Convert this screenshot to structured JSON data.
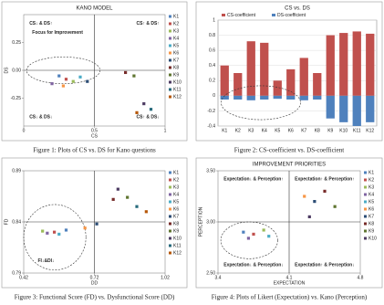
{
  "chart_data": [
    {
      "type": "scatter",
      "title": "KANO MODEL",
      "x_label": "CS",
      "y_label": "DS",
      "caption": "Figure 1: Plots of CS vs. DS for Kano questions",
      "xlim": [
        0,
        1
      ],
      "xticks": [
        0,
        0.5,
        1
      ],
      "ylim": [
        -0.5,
        0.5
      ],
      "yticks": [
        0.25,
        {
          "value": 0,
          "label": "0.00"
        },
        -0.25
      ],
      "grid": false,
      "legend": "right",
      "annotations": [
        "CS↓ & DS↑",
        "CS↑ & DS↑",
        "CS↓ & DS↓",
        "CS↑ & DS↓",
        "Focus for Improvement"
      ],
      "series": [
        {
          "name": "K1",
          "color": "#4f81bd",
          "x": [
            0.25
          ],
          "values": [
            -0.05
          ]
        },
        {
          "name": "K2",
          "color": "#c0504d",
          "x": [
            0.3
          ],
          "values": [
            -0.08
          ]
        },
        {
          "name": "K3",
          "color": "#9bbb59",
          "x": [
            0.35
          ],
          "values": [
            -0.1
          ]
        },
        {
          "name": "K4",
          "color": "#8064a2",
          "x": [
            0.2
          ],
          "values": [
            -0.12
          ]
        },
        {
          "name": "K5",
          "color": "#4bacc6",
          "x": [
            0.4
          ],
          "values": [
            -0.06
          ]
        },
        {
          "name": "K6",
          "color": "#f79646",
          "x": [
            0.28
          ],
          "values": [
            -0.14
          ]
        },
        {
          "name": "K7",
          "color": "#2c4d75",
          "x": [
            0.45
          ],
          "values": [
            -0.1
          ]
        },
        {
          "name": "K8",
          "color": "#772c2a",
          "x": [
            0.72
          ],
          "values": [
            -0.02
          ]
        },
        {
          "name": "K9",
          "color": "#5f7530",
          "x": [
            0.78
          ],
          "values": [
            -0.05
          ]
        },
        {
          "name": "K10",
          "color": "#4d3b62",
          "x": [
            0.85
          ],
          "values": [
            -0.3
          ]
        },
        {
          "name": "K11",
          "color": "#276a7c",
          "x": [
            0.9
          ],
          "values": [
            -0.35
          ]
        },
        {
          "name": "K12",
          "color": "#b65708",
          "x": [
            0.8
          ],
          "values": [
            -0.38
          ]
        }
      ]
    },
    {
      "type": "bar",
      "title": "CS vs. DS",
      "caption": "Figure 2: CS-coefficient vs. DS-coefficient",
      "categories": [
        "K1",
        "K2",
        "K3",
        "K4",
        "K5",
        "K6",
        "K7",
        "K8",
        "K9",
        "K10",
        "K11",
        "K12"
      ],
      "ylim": [
        -0.4,
        1
      ],
      "yticks": [
        1,
        0.8,
        0.6,
        0.4,
        0.2,
        0,
        -0.2,
        -0.4
      ],
      "grid": true,
      "legend": "top",
      "series": [
        {
          "name": "CS-coefficient",
          "color": "#c0504d",
          "values": [
            0.4,
            0.3,
            0.72,
            0.7,
            0.2,
            0.35,
            0.5,
            0.3,
            0.8,
            0.83,
            0.85,
            0.82
          ]
        },
        {
          "name": "DS-coefficient",
          "color": "#4f81bd",
          "values": [
            -0.05,
            -0.05,
            -0.06,
            -0.05,
            -0.04,
            -0.05,
            -0.06,
            -0.05,
            -0.3,
            -0.35,
            -0.4,
            -0.35
          ]
        }
      ]
    },
    {
      "type": "scatter",
      "x_label": "DD",
      "y_label": "FD",
      "caption": "Figure 3: Functional Score (FD) vs. Dysfunctional Score (DD)",
      "xlim": [
        0.42,
        1.02
      ],
      "xticks": [
        0.42,
        0.72,
        1.02
      ],
      "ylim": [
        0.79,
        0.89
      ],
      "yticks": [
        0.89,
        0.84,
        0.79
      ],
      "grid": false,
      "legend": "right",
      "annotations": [
        "FI↓&DI↓"
      ],
      "series": [
        {
          "name": "K1",
          "color": "#4f81bd",
          "x": [
            0.6
          ],
          "values": [
            0.832
          ]
        },
        {
          "name": "K2",
          "color": "#c0504d",
          "x": [
            0.55
          ],
          "values": [
            0.83
          ]
        },
        {
          "name": "K3",
          "color": "#9bbb59",
          "x": [
            0.5
          ],
          "values": [
            0.831
          ]
        },
        {
          "name": "K4",
          "color": "#8064a2",
          "x": [
            0.52
          ],
          "values": [
            0.829
          ]
        },
        {
          "name": "K5",
          "color": "#4bacc6",
          "x": [
            0.57
          ],
          "values": [
            0.828
          ]
        },
        {
          "name": "K6",
          "color": "#f79646",
          "x": [
            0.68
          ],
          "values": [
            0.834
          ]
        },
        {
          "name": "K7",
          "color": "#2c4d75",
          "x": [
            0.73
          ],
          "values": [
            0.838
          ]
        },
        {
          "name": "K8",
          "color": "#772c2a",
          "x": [
            0.8
          ],
          "values": [
            0.862
          ]
        },
        {
          "name": "K9",
          "color": "#5f7530",
          "x": [
            0.86
          ],
          "values": [
            0.864
          ]
        },
        {
          "name": "K10",
          "color": "#4d3b62",
          "x": [
            0.82
          ],
          "values": [
            0.872
          ]
        },
        {
          "name": "K11",
          "color": "#276a7c",
          "x": [
            0.9
          ],
          "values": [
            0.855
          ]
        },
        {
          "name": "K12",
          "color": "#b65708",
          "x": [
            0.94
          ],
          "values": [
            0.85
          ]
        }
      ]
    },
    {
      "type": "scatter",
      "title": "IMPROVEMENT PRIORITIES",
      "x_label": "EXPECTATION",
      "y_label": "PERCEPTION",
      "caption": "Figure 4: Plots of Likert (Expectation) vs. Kano (Perception)",
      "xlim": [
        3.4,
        4.8
      ],
      "xticks": [
        3.4,
        4.1,
        4.8
      ],
      "ylim": [
        2.5,
        3.5
      ],
      "yticks": [
        {
          "value": 3.5,
          "label": "3.50"
        },
        {
          "value": 3,
          "label": "3.00"
        },
        {
          "value": 2.5,
          "label": "2.50"
        }
      ],
      "grid": false,
      "legend": "right",
      "annotations": [
        "Expectation↓ & Perception↑",
        "Expectation↑ & Perception↑",
        "Expectation↓ & Perception↓",
        "Expectation↑ & Perception↓"
      ],
      "series": [
        {
          "name": "K1",
          "color": "#4f81bd",
          "x": [
            3.65
          ],
          "values": [
            2.9
          ]
        },
        {
          "name": "K2",
          "color": "#c0504d",
          "x": [
            3.75
          ],
          "values": [
            2.88
          ]
        },
        {
          "name": "K3",
          "color": "#9bbb59",
          "x": [
            3.85
          ],
          "values": [
            2.92
          ]
        },
        {
          "name": "K4",
          "color": "#8064a2",
          "x": [
            3.7
          ],
          "values": [
            2.84
          ]
        },
        {
          "name": "K5",
          "color": "#4bacc6",
          "x": [
            3.9
          ],
          "values": [
            2.86
          ]
        },
        {
          "name": "K6",
          "color": "#f79646",
          "x": [
            4.25
          ],
          "values": [
            3.25
          ]
        },
        {
          "name": "K7",
          "color": "#2c4d75",
          "x": [
            4.35
          ],
          "values": [
            3.2
          ]
        },
        {
          "name": "K8",
          "color": "#772c2a",
          "x": [
            4.45
          ],
          "values": [
            3.3
          ]
        },
        {
          "name": "K9",
          "color": "#5f7530",
          "x": [
            4.55
          ],
          "values": [
            3.15
          ]
        },
        {
          "name": "K10",
          "color": "#4d3b62",
          "x": [
            4.3
          ],
          "values": [
            3.05
          ]
        }
      ]
    }
  ]
}
